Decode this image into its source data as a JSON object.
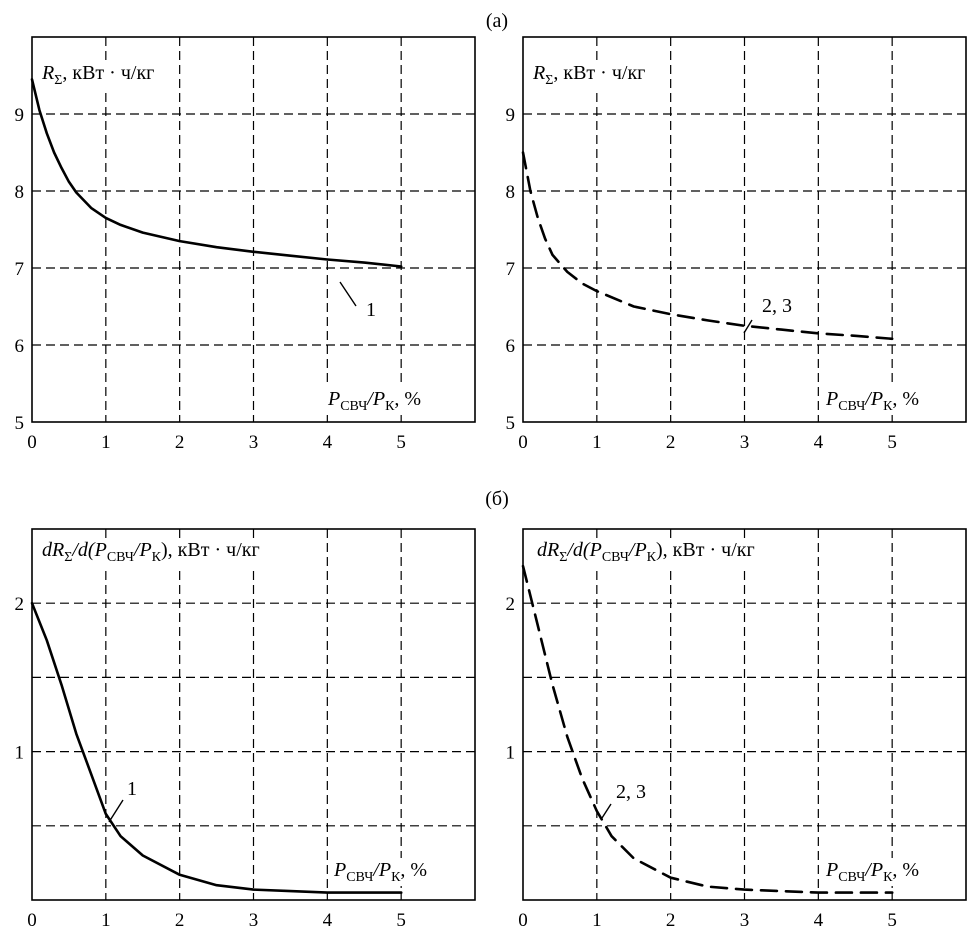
{
  "panel_labels": [
    "(а)",
    "(б)"
  ],
  "chart_data": [
    {
      "type": "line",
      "panel": "(а)",
      "ylabel_main": "R",
      "ylabel_sub": "Σ",
      "ylabel_units": ", кВт · ч/кг",
      "xlabel_main": "P",
      "xlabel_sub1": "СВЧ",
      "xlabel_mid": "/P",
      "xlabel_sub2": "К",
      "xlabel_units": ", %",
      "xlim": [
        0,
        6
      ],
      "ylim": [
        5,
        10
      ],
      "xticks": [
        0,
        1,
        2,
        3,
        4,
        5
      ],
      "yticks": [
        5,
        6,
        7,
        8,
        9
      ],
      "xgrid": [
        1,
        2,
        3,
        4,
        5
      ],
      "ygrid": [
        6,
        7,
        8,
        9
      ],
      "grid": true,
      "series": [
        {
          "name": "1",
          "style": "solid",
          "x": [
            0,
            0.1,
            0.2,
            0.3,
            0.4,
            0.5,
            0.6,
            0.8,
            1.0,
            1.2,
            1.5,
            2.0,
            2.5,
            3.0,
            3.5,
            4.0,
            4.5,
            5.0
          ],
          "y": [
            9.45,
            9.05,
            8.75,
            8.5,
            8.3,
            8.12,
            7.98,
            7.78,
            7.65,
            7.56,
            7.46,
            7.35,
            7.27,
            7.21,
            7.16,
            7.11,
            7.07,
            7.02
          ]
        }
      ],
      "annotation": {
        "text": "1",
        "x": 4.1,
        "y": 7.08
      }
    },
    {
      "type": "line",
      "panel": "(а)",
      "ylabel_main": "R",
      "ylabel_sub": "Σ",
      "ylabel_units": ", кВт · ч/кг",
      "xlabel_main": "P",
      "xlabel_sub1": "СВЧ",
      "xlabel_mid": "/P",
      "xlabel_sub2": "К",
      "xlabel_units": ", %",
      "xlim": [
        0,
        6
      ],
      "ylim": [
        5,
        10
      ],
      "xticks": [
        0,
        1,
        2,
        3,
        4,
        5
      ],
      "yticks": [
        5,
        6,
        7,
        8,
        9
      ],
      "xgrid": [
        1,
        2,
        3,
        4,
        5
      ],
      "ygrid": [
        6,
        7,
        8,
        9
      ],
      "grid": true,
      "series": [
        {
          "name": "2, 3",
          "style": "dashed",
          "x": [
            0,
            0.1,
            0.2,
            0.3,
            0.4,
            0.6,
            0.8,
            1.0,
            1.5,
            2.0,
            2.5,
            3.0,
            3.5,
            4.0,
            4.5,
            5.0
          ],
          "y": [
            8.5,
            8.0,
            7.65,
            7.38,
            7.17,
            6.95,
            6.8,
            6.7,
            6.5,
            6.4,
            6.32,
            6.25,
            6.2,
            6.15,
            6.12,
            6.08
          ]
        }
      ],
      "annotation": {
        "text": "2, 3",
        "x": 3.0,
        "y": 6.25
      }
    },
    {
      "type": "line",
      "panel": "(б)",
      "ylabel_main1": "dR",
      "ylabel_sub": "Σ",
      "ylabel_main2": "/d(P",
      "ylabel_sub1": "СВЧ",
      "ylabel_main3": "/P",
      "ylabel_sub2": "К",
      "ylabel_units": "), кВт · ч/кг",
      "xlabel_main": "P",
      "xlabel_sub1": "СВЧ",
      "xlabel_mid": "/P",
      "xlabel_sub2": "К",
      "xlabel_units": ", %",
      "xlim": [
        0,
        6
      ],
      "ylim": [
        0,
        2.5
      ],
      "xticks": [
        0,
        1,
        2,
        3,
        4,
        5
      ],
      "yticks": [
        1,
        2
      ],
      "xgrid": [
        1,
        2,
        3,
        4,
        5
      ],
      "ygrid": [
        0.5,
        1,
        1.5,
        2
      ],
      "grid": true,
      "series": [
        {
          "name": "1",
          "style": "solid",
          "x": [
            0,
            0.2,
            0.4,
            0.6,
            0.8,
            1.0,
            1.2,
            1.5,
            2.0,
            2.5,
            3.0,
            3.5,
            4.0,
            4.5,
            5.0
          ],
          "y": [
            2.0,
            1.75,
            1.45,
            1.12,
            0.85,
            0.58,
            0.43,
            0.3,
            0.17,
            0.1,
            0.07,
            0.06,
            0.05,
            0.05,
            0.05
          ]
        }
      ],
      "annotation": {
        "text": "1",
        "x": 1.05,
        "y": 0.55
      }
    },
    {
      "type": "line",
      "panel": "(б)",
      "ylabel_main1": "dR",
      "ylabel_sub": "Σ",
      "ylabel_main2": "/d(P",
      "ylabel_sub1": "СВЧ",
      "ylabel_main3": "/P",
      "ylabel_sub2": "К",
      "ylabel_units": "), кВт · ч/кг",
      "xlabel_main": "P",
      "xlabel_sub1": "СВЧ",
      "xlabel_mid": "/P",
      "xlabel_sub2": "К",
      "xlabel_units": ", %",
      "xlim": [
        0,
        6
      ],
      "ylim": [
        0,
        2.5
      ],
      "xticks": [
        0,
        1,
        2,
        3,
        4,
        5
      ],
      "yticks": [
        1,
        2
      ],
      "xgrid": [
        1,
        2,
        3,
        4,
        5
      ],
      "ygrid": [
        0.5,
        1,
        1.5,
        2
      ],
      "grid": true,
      "series": [
        {
          "name": "2, 3",
          "style": "dashed",
          "x": [
            0,
            0.2,
            0.4,
            0.6,
            0.8,
            1.0,
            1.2,
            1.5,
            2.0,
            2.5,
            3.0,
            3.5,
            4.0,
            4.5,
            5.0
          ],
          "y": [
            2.25,
            1.85,
            1.45,
            1.1,
            0.82,
            0.6,
            0.43,
            0.28,
            0.15,
            0.09,
            0.07,
            0.06,
            0.05,
            0.05,
            0.05
          ]
        }
      ],
      "annotation": {
        "text": "2, 3",
        "x": 1.1,
        "y": 0.58
      }
    }
  ]
}
